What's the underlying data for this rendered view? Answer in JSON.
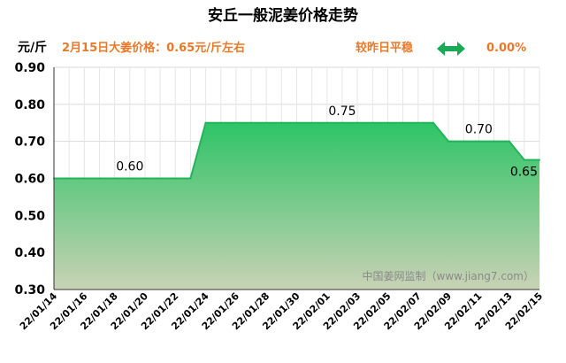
{
  "header": {
    "title": "安丘一般泥姜价格走势",
    "unit": "元/斤",
    "price_text": "2月15日大姜价格：0.65元/斤左右",
    "compare_text": "较昨日平稳",
    "change_text": "0.00%",
    "arrow_icon": "double-arrow-icon",
    "arrow_color": "#1aaa55",
    "accent_color": "#e9792a"
  },
  "watermark": "中国姜网监制（www.jiang7.com）",
  "chart_data": {
    "type": "area",
    "title": "安丘一般泥姜价格走势",
    "ylabel": "元/斤",
    "xlabel": "",
    "ylim": [
      0.3,
      0.9
    ],
    "yticks": [
      "0.30",
      "0.40",
      "0.50",
      "0.60",
      "0.70",
      "0.80",
      "0.90"
    ],
    "xticks": [
      "22/01/14",
      "22/01/16",
      "22/01/18",
      "22/01/20",
      "22/01/22",
      "22/01/24",
      "22/01/26",
      "22/01/28",
      "22/01/30",
      "22/02/01",
      "22/02/03",
      "22/02/05",
      "22/02/07",
      "22/02/09",
      "22/02/11",
      "22/02/13",
      "22/02/15"
    ],
    "x": [
      "22/01/14",
      "22/01/15",
      "22/01/16",
      "22/01/17",
      "22/01/18",
      "22/01/19",
      "22/01/20",
      "22/01/21",
      "22/01/22",
      "22/01/23",
      "22/01/24",
      "22/01/25",
      "22/01/26",
      "22/01/27",
      "22/01/28",
      "22/01/29",
      "22/01/30",
      "22/01/31",
      "22/02/01",
      "22/02/02",
      "22/02/03",
      "22/02/04",
      "22/02/05",
      "22/02/06",
      "22/02/07",
      "22/02/08",
      "22/02/09",
      "22/02/10",
      "22/02/11",
      "22/02/12",
      "22/02/13",
      "22/02/14",
      "22/02/15"
    ],
    "values": [
      0.6,
      0.6,
      0.6,
      0.6,
      0.6,
      0.6,
      0.6,
      0.6,
      0.6,
      0.6,
      0.75,
      0.75,
      0.75,
      0.75,
      0.75,
      0.75,
      0.75,
      0.75,
      0.75,
      0.75,
      0.75,
      0.75,
      0.75,
      0.75,
      0.75,
      0.75,
      0.7,
      0.7,
      0.7,
      0.7,
      0.7,
      0.65,
      0.65
    ],
    "data_labels": [
      {
        "x": "22/01/19",
        "text": "0.60"
      },
      {
        "x": "22/02/02",
        "text": "0.75"
      },
      {
        "x": "22/02/11",
        "text": "0.70"
      },
      {
        "x": "22/02/15",
        "text": "0.65"
      }
    ],
    "grid": true,
    "series_color": "#22b45a"
  }
}
